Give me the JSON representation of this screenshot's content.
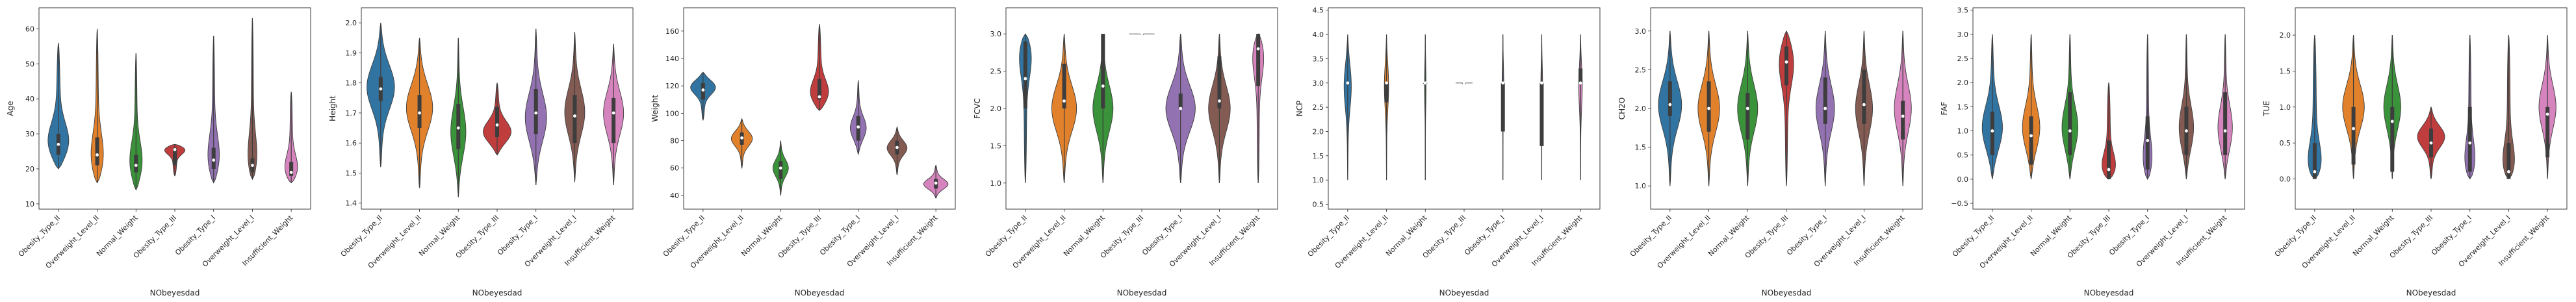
{
  "colors": [
    "#3274a1",
    "#e1812c",
    "#3a923a",
    "#c03d3e",
    "#9372b2",
    "#845b53",
    "#d684bd"
  ],
  "chart_data": [
    {
      "type": "violin",
      "xlabel": "NObeyesdad",
      "ylabel": "Age",
      "categories": [
        "Obesity_Type_II",
        "Overweight_Level_II",
        "Normal_Weight",
        "Obesity_Type_III",
        "Obesity_Type_I",
        "Overweight_Level_I",
        "Insufficient_Weight"
      ],
      "ylim": [
        8.5,
        66
      ],
      "yticks": [
        10,
        20,
        30,
        40,
        50,
        60
      ],
      "yticklabels": [
        "10",
        "20",
        "30",
        "40",
        "50",
        "60"
      ],
      "violins": [
        {
          "min": 20,
          "max": 56,
          "q1": 24,
          "median": 27,
          "q3": 30,
          "mode": 26,
          "width": 0.9
        },
        {
          "min": 16,
          "max": 60,
          "q1": 21,
          "median": 24,
          "q3": 29,
          "mode": 21,
          "width": 0.6
        },
        {
          "min": 14,
          "max": 53,
          "q1": 19,
          "median": 21,
          "q3": 24,
          "mode": 20,
          "width": 0.55
        },
        {
          "min": 18,
          "max": 27,
          "q1": 21,
          "median": 25.5,
          "q3": 26,
          "mode": 26,
          "width": 1.0
        },
        {
          "min": 16,
          "max": 58,
          "q1": 20,
          "median": 22.5,
          "q3": 26,
          "mode": 21,
          "width": 0.55
        },
        {
          "min": 17,
          "max": 63,
          "q1": 19,
          "median": 21,
          "q3": 23,
          "mode": 20,
          "width": 0.5
        },
        {
          "min": 16,
          "max": 42,
          "q1": 18,
          "median": 19,
          "q3": 22,
          "mode": 18.5,
          "width": 0.65
        }
      ]
    },
    {
      "type": "violin",
      "xlabel": "NObeyesdad",
      "ylabel": "Height",
      "categories": [
        "Obesity_Type_II",
        "Overweight_Level_II",
        "Normal_Weight",
        "Obesity_Type_III",
        "Obesity_Type_I",
        "Overweight_Level_I",
        "Insufficient_Weight"
      ],
      "ylim": [
        1.38,
        2.05
      ],
      "yticks": [
        1.4,
        1.5,
        1.6,
        1.7,
        1.8,
        1.9,
        2.0
      ],
      "yticklabels": [
        "1.4",
        "1.5",
        "1.6",
        "1.7",
        "1.8",
        "1.9",
        "2.0"
      ],
      "violins": [
        {
          "min": 1.52,
          "max": 2.0,
          "q1": 1.74,
          "median": 1.78,
          "q3": 1.82,
          "mode": 1.79,
          "width": 0.9
        },
        {
          "min": 1.45,
          "max": 1.95,
          "q1": 1.65,
          "median": 1.7,
          "q3": 1.76,
          "mode": 1.72,
          "width": 0.85
        },
        {
          "min": 1.42,
          "max": 1.95,
          "q1": 1.58,
          "median": 1.65,
          "q3": 1.73,
          "mode": 1.63,
          "width": 0.5
        },
        {
          "min": 1.56,
          "max": 1.8,
          "q1": 1.62,
          "median": 1.66,
          "q3": 1.72,
          "mode": 1.63,
          "width": 1.0
        },
        {
          "min": 1.46,
          "max": 1.98,
          "q1": 1.63,
          "median": 1.7,
          "q3": 1.78,
          "mode": 1.68,
          "width": 0.7
        },
        {
          "min": 1.47,
          "max": 1.97,
          "q1": 1.6,
          "median": 1.69,
          "q3": 1.76,
          "mode": 1.7,
          "width": 0.65
        },
        {
          "min": 1.46,
          "max": 1.93,
          "q1": 1.6,
          "median": 1.7,
          "q3": 1.75,
          "mode": 1.7,
          "width": 0.65
        }
      ]
    },
    {
      "type": "violin",
      "xlabel": "NObeyesdad",
      "ylabel": "Weight",
      "categories": [
        "Obesity_Type_II",
        "Overweight_Level_II",
        "Normal_Weight",
        "Obesity_Type_III",
        "Obesity_Type_I",
        "Overweight_Level_I",
        "Insufficient_Weight"
      ],
      "ylim": [
        30,
        177
      ],
      "yticks": [
        40,
        60,
        80,
        100,
        120,
        140,
        160
      ],
      "yticklabels": [
        "40",
        "60",
        "80",
        "100",
        "120",
        "140",
        "160"
      ],
      "violins": [
        {
          "min": 95,
          "max": 130,
          "q1": 110,
          "median": 117,
          "q3": 122,
          "mode": 120,
          "width": 0.9
        },
        {
          "min": 60,
          "max": 96,
          "q1": 77,
          "median": 82,
          "q3": 86,
          "mode": 82,
          "width": 0.7
        },
        {
          "min": 40,
          "max": 80,
          "q1": 52,
          "median": 60,
          "q3": 65,
          "mode": 60,
          "width": 0.5
        },
        {
          "min": 102,
          "max": 165,
          "q1": 110,
          "median": 112,
          "q3": 125,
          "mode": 112,
          "width": 0.8
        },
        {
          "min": 70,
          "max": 124,
          "q1": 80,
          "median": 90,
          "q3": 98,
          "mode": 88,
          "width": 0.55
        },
        {
          "min": 55,
          "max": 90,
          "q1": 70,
          "median": 75,
          "q3": 80,
          "mode": 75,
          "width": 0.65
        },
        {
          "min": 38,
          "max": 62,
          "q1": 45,
          "median": 49,
          "q3": 52,
          "mode": 48,
          "width": 0.8
        }
      ]
    },
    {
      "type": "violin",
      "xlabel": "NObeyesdad",
      "ylabel": "FCVC",
      "categories": [
        "Obesity_Type_II",
        "Overweight_Level_II",
        "Normal_Weight",
        "Obesity_Type_III",
        "Obesity_Type_I",
        "Overweight_Level_I",
        "Insufficient_Weight"
      ],
      "ylim": [
        0.65,
        3.35
      ],
      "yticks": [
        1.0,
        1.5,
        2.0,
        2.5,
        3.0
      ],
      "yticklabels": [
        "1.0",
        "1.5",
        "2.0",
        "2.5",
        "3.0"
      ],
      "violins": [
        {
          "min": 1.0,
          "max": 3.0,
          "q1": 2.0,
          "median": 2.4,
          "q3": 2.9,
          "mode": 2.85,
          "width": 0.65
        },
        {
          "min": 1.0,
          "max": 3.0,
          "q1": 2.0,
          "median": 2.1,
          "q3": 2.6,
          "mode": 2.0,
          "width": 0.8
        },
        {
          "min": 1.0,
          "max": 3.0,
          "q1": 2.0,
          "median": 2.3,
          "q3": 3.0,
          "mode": 2.0,
          "width": 0.65
        },
        {
          "min": 3.0,
          "max": 3.0,
          "q1": 3.0,
          "median": 3.0,
          "q3": 3.0,
          "mode": 3.0,
          "width": 0.9
        },
        {
          "min": 1.0,
          "max": 3.0,
          "q1": 2.0,
          "median": 2.0,
          "q3": 2.2,
          "mode": 2.0,
          "width": 0.95
        },
        {
          "min": 1.0,
          "max": 3.0,
          "q1": 2.0,
          "median": 2.1,
          "q3": 2.7,
          "mode": 2.0,
          "width": 0.7
        },
        {
          "min": 1.0,
          "max": 3.0,
          "q1": 2.3,
          "median": 2.8,
          "q3": 3.0,
          "mode": 2.85,
          "width": 0.6
        }
      ]
    },
    {
      "type": "violin",
      "xlabel": "NObeyesdad",
      "ylabel": "NCP",
      "categories": [
        "Obesity_Type_II",
        "Overweight_Level_II",
        "Normal_Weight",
        "Obesity_Type_III",
        "Obesity_Type_I",
        "Overweight_Level_I",
        "Insufficient_Weight"
      ],
      "ylim": [
        0.4,
        4.55
      ],
      "yticks": [
        0.5,
        1.0,
        1.5,
        2.0,
        2.5,
        3.0,
        3.5,
        4.0,
        4.5
      ],
      "yticklabels": [
        "0.5",
        "1.0",
        "1.5",
        "2.0",
        "2.5",
        "3.0",
        "3.5",
        "4.0",
        "4.5"
      ],
      "violins": [
        {
          "min": 1.0,
          "max": 4.0,
          "q1": 3.0,
          "median": 3.0,
          "q3": 3.0,
          "mode": 3.0,
          "width": 0.25
        },
        {
          "min": 1.0,
          "max": 4.0,
          "q1": 2.6,
          "median": 3.0,
          "q3": 3.0,
          "mode": 3.0,
          "width": 0.15
        },
        {
          "min": 1.0,
          "max": 4.0,
          "q1": 3.0,
          "median": 3.0,
          "q3": 3.0,
          "mode": 3.0,
          "width": 0.05
        },
        {
          "min": 3.0,
          "max": 3.0,
          "q1": 3.0,
          "median": 3.0,
          "q3": 3.0,
          "mode": 3.0,
          "width": 0.6
        },
        {
          "min": 1.0,
          "max": 4.0,
          "q1": 2.0,
          "median": 3.0,
          "q3": 3.0,
          "mode": 3.0,
          "width": 0.06
        },
        {
          "min": 1.0,
          "max": 4.0,
          "q1": 1.7,
          "median": 3.0,
          "q3": 3.0,
          "mode": 3.0,
          "width": 0.06
        },
        {
          "min": 1.0,
          "max": 4.0,
          "q1": 3.0,
          "median": 3.0,
          "q3": 3.3,
          "mode": 3.0,
          "width": 0.12
        }
      ]
    },
    {
      "type": "violin",
      "xlabel": "NObeyesdad",
      "ylabel": "CH2O",
      "categories": [
        "Obesity_Type_II",
        "Overweight_Level_II",
        "Normal_Weight",
        "Obesity_Type_III",
        "Obesity_Type_I",
        "Overweight_Level_I",
        "Insufficient_Weight"
      ],
      "ylim": [
        0.7,
        3.3
      ],
      "yticks": [
        1.0,
        1.5,
        2.0,
        2.5,
        3.0
      ],
      "yticklabels": [
        "1.0",
        "1.5",
        "2.0",
        "2.5",
        "3.0"
      ],
      "violins": [
        {
          "min": 1.0,
          "max": 3.0,
          "q1": 1.9,
          "median": 2.05,
          "q3": 2.35,
          "mode": 2.05,
          "width": 0.75
        },
        {
          "min": 1.0,
          "max": 3.0,
          "q1": 1.7,
          "median": 2.0,
          "q3": 2.35,
          "mode": 2.0,
          "width": 0.7
        },
        {
          "min": 1.0,
          "max": 3.0,
          "q1": 1.6,
          "median": 2.0,
          "q3": 2.2,
          "mode": 2.0,
          "width": 0.65
        },
        {
          "min": 1.0,
          "max": 3.0,
          "q1": 2.3,
          "median": 2.6,
          "q3": 2.8,
          "mode": 2.7,
          "width": 0.65
        },
        {
          "min": 1.0,
          "max": 3.0,
          "q1": 1.8,
          "median": 2.0,
          "q3": 2.4,
          "mode": 2.0,
          "width": 0.6
        },
        {
          "min": 1.0,
          "max": 3.0,
          "q1": 1.8,
          "median": 2.05,
          "q3": 2.5,
          "mode": 2.0,
          "width": 0.55
        },
        {
          "min": 1.0,
          "max": 3.0,
          "q1": 1.6,
          "median": 1.9,
          "q3": 2.1,
          "mode": 2.0,
          "width": 0.55
        }
      ]
    },
    {
      "type": "violin",
      "xlabel": "NObeyesdad",
      "ylabel": "FAF",
      "categories": [
        "Obesity_Type_II",
        "Overweight_Level_II",
        "Normal_Weight",
        "Obesity_Type_III",
        "Obesity_Type_I",
        "Overweight_Level_I",
        "Insufficient_Weight"
      ],
      "ylim": [
        -0.62,
        3.55
      ],
      "yticks": [
        -0.5,
        0.0,
        0.5,
        1.0,
        1.5,
        2.0,
        2.5,
        3.0,
        3.5
      ],
      "yticklabels": [
        "−0.5",
        "0.0",
        "0.5",
        "1.0",
        "1.5",
        "2.0",
        "2.5",
        "3.0",
        "3.5"
      ],
      "violins": [
        {
          "min": 0.0,
          "max": 3.0,
          "q1": 0.5,
          "median": 1.0,
          "q3": 1.4,
          "mode": 1.0,
          "width": 0.7
        },
        {
          "min": 0.0,
          "max": 3.0,
          "q1": 0.3,
          "median": 0.9,
          "q3": 1.3,
          "mode": 1.0,
          "width": 0.6
        },
        {
          "min": 0.0,
          "max": 3.0,
          "q1": 0.5,
          "median": 1.0,
          "q3": 1.8,
          "mode": 1.0,
          "width": 0.55
        },
        {
          "min": 0.0,
          "max": 2.0,
          "q1": 0.0,
          "median": 0.2,
          "q3": 0.8,
          "mode": 0.1,
          "width": 0.8
        },
        {
          "min": 0.0,
          "max": 3.0,
          "q1": 0.2,
          "median": 0.8,
          "q3": 1.3,
          "mode": 0.2,
          "width": 0.5
        },
        {
          "min": 0.0,
          "max": 3.0,
          "q1": 0.5,
          "median": 1.0,
          "q3": 1.5,
          "mode": 1.0,
          "width": 0.5
        },
        {
          "min": 0.0,
          "max": 3.0,
          "q1": 0.5,
          "median": 1.0,
          "q3": 1.8,
          "mode": 1.0,
          "width": 0.5
        }
      ]
    },
    {
      "type": "violin",
      "xlabel": "NObeyesdad",
      "ylabel": "TUE",
      "categories": [
        "Obesity_Type_II",
        "Overweight_Level_II",
        "Normal_Weight",
        "Obesity_Type_III",
        "Obesity_Type_I",
        "Overweight_Level_I",
        "Insufficient_Weight"
      ],
      "ylim": [
        -0.42,
        2.38
      ],
      "yticks": [
        0.0,
        0.5,
        1.0,
        1.5,
        2.0
      ],
      "yticklabels": [
        "0.0",
        "0.5",
        "1.0",
        "1.5",
        "2.0"
      ],
      "violins": [
        {
          "min": 0.0,
          "max": 2.0,
          "q1": 0.0,
          "median": 0.1,
          "q3": 0.5,
          "mode": 0.05,
          "width": 0.85
        },
        {
          "min": 0.0,
          "max": 2.0,
          "q1": 0.2,
          "median": 0.7,
          "q3": 1.0,
          "mode": 1.0,
          "width": 0.7
        },
        {
          "min": 0.0,
          "max": 2.0,
          "q1": 0.1,
          "median": 0.8,
          "q3": 1.0,
          "mode": 1.0,
          "width": 0.55
        },
        {
          "min": 0.0,
          "max": 1.0,
          "q1": 0.3,
          "median": 0.5,
          "q3": 0.7,
          "mode": 0.6,
          "width": 0.9
        },
        {
          "min": 0.0,
          "max": 2.0,
          "q1": 0.1,
          "median": 0.5,
          "q3": 1.0,
          "mode": 0.1,
          "width": 0.6
        },
        {
          "min": 0.0,
          "max": 2.0,
          "q1": 0.0,
          "median": 0.1,
          "q3": 0.5,
          "mode": 0.05,
          "width": 0.75
        },
        {
          "min": 0.0,
          "max": 2.0,
          "q1": 0.3,
          "median": 0.9,
          "q3": 1.0,
          "mode": 1.0,
          "width": 0.55
        }
      ]
    }
  ]
}
